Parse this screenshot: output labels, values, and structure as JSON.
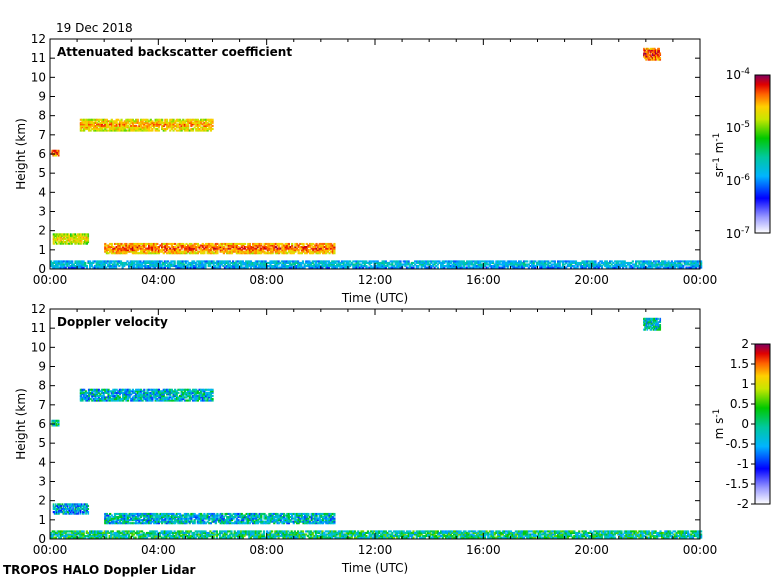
{
  "figure": {
    "date": "19 Dec 2018",
    "footer": "TROPOS HALO Doppler Lidar"
  },
  "chart_data": [
    {
      "type": "heatmap",
      "title": "Attenuated backscatter coefficient",
      "xlabel": "Time (UTC)",
      "ylabel": "Height (km)",
      "xlim": [
        0,
        24
      ],
      "ylim": [
        0,
        12
      ],
      "x_ticks": [
        "00:00",
        "04:00",
        "08:00",
        "12:00",
        "16:00",
        "20:00",
        "00:00"
      ],
      "y_ticks": [
        "0",
        "1",
        "2",
        "3",
        "4",
        "5",
        "6",
        "7",
        "8",
        "9",
        "10",
        "11",
        "12"
      ],
      "colorbar": {
        "label_base": "sr",
        "label_exp1": "-1",
        "label_mid": " m",
        "label_exp2": "-1",
        "scale": "log",
        "range": [
          1e-07,
          0.0001
        ],
        "ticks": [
          {
            "base": "10",
            "exp": "-4",
            "value": -4
          },
          {
            "base": "10",
            "exp": "-5",
            "value": -5
          },
          {
            "base": "10",
            "exp": "-6",
            "value": -6
          },
          {
            "base": "10",
            "exp": "-7",
            "value": -7
          }
        ]
      },
      "features": [
        {
          "name": "boundary layer",
          "t": [
            0.0,
            24.0
          ],
          "h": [
            0.05,
            0.45
          ],
          "level": 0.45
        },
        {
          "name": "low cloud",
          "t": [
            0.1,
            1.4
          ],
          "h": [
            1.3,
            1.8
          ],
          "level": 0.8
        },
        {
          "name": "low cloud",
          "t": [
            2.0,
            10.5
          ],
          "h": [
            0.8,
            1.35
          ],
          "level": 0.9
        },
        {
          "name": "mid cloud",
          "t": [
            0.05,
            0.3
          ],
          "h": [
            5.9,
            6.2
          ],
          "level": 0.95
        },
        {
          "name": "mid cloud",
          "t": [
            1.1,
            6.0
          ],
          "h": [
            7.2,
            7.8
          ],
          "level": 0.85
        },
        {
          "name": "cirrus",
          "t": [
            21.9,
            22.5
          ],
          "h": [
            10.9,
            11.5
          ],
          "level": 0.95
        }
      ]
    },
    {
      "type": "heatmap",
      "title": "Doppler velocity",
      "xlabel": "Time (UTC)",
      "ylabel": "Height (km)",
      "xlim": [
        0,
        24
      ],
      "ylim": [
        0,
        12
      ],
      "x_ticks": [
        "00:00",
        "04:00",
        "08:00",
        "12:00",
        "16:00",
        "20:00",
        "00:00"
      ],
      "y_ticks": [
        "0",
        "1",
        "2",
        "3",
        "4",
        "5",
        "6",
        "7",
        "8",
        "9",
        "10",
        "11",
        "12"
      ],
      "colorbar": {
        "label_base": "m s",
        "label_exp1": "-1",
        "scale": "linear",
        "range": [
          -2,
          2
        ],
        "ticks": [
          "2",
          "1.5",
          "1",
          "0.5",
          "0",
          "-0.5",
          "-1",
          "-1.5",
          "-2"
        ]
      },
      "features": [
        {
          "name": "boundary layer",
          "t": [
            0.0,
            24.0
          ],
          "h": [
            0.05,
            0.45
          ],
          "velocity": 0.0
        },
        {
          "name": "low cloud",
          "t": [
            0.1,
            1.4
          ],
          "h": [
            1.3,
            1.8
          ],
          "velocity": -0.4
        },
        {
          "name": "low cloud",
          "t": [
            2.0,
            10.5
          ],
          "h": [
            0.8,
            1.35
          ],
          "velocity": -0.3
        },
        {
          "name": "mid cloud",
          "t": [
            0.05,
            0.3
          ],
          "h": [
            5.9,
            6.2
          ],
          "velocity": 0.0
        },
        {
          "name": "mid cloud",
          "t": [
            1.1,
            6.0
          ],
          "h": [
            7.2,
            7.8
          ],
          "velocity": -0.3
        },
        {
          "name": "cirrus",
          "t": [
            21.9,
            22.5
          ],
          "h": [
            10.9,
            11.5
          ],
          "velocity": -0.2
        }
      ]
    }
  ]
}
